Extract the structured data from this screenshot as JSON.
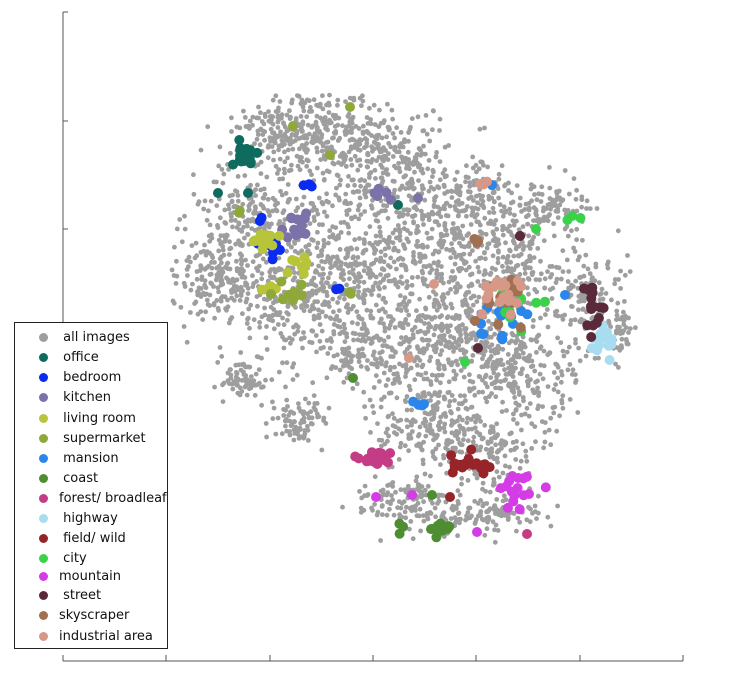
{
  "chart_data": {
    "type": "scatter",
    "title": "",
    "xlabel": "",
    "ylabel": "",
    "legend_position": "bottom-left",
    "grid": false,
    "x_ticks": [
      "",
      "",
      "",
      "",
      "",
      "",
      ""
    ],
    "y_ticks": [
      "",
      "",
      ""
    ],
    "background_cloud_color": "#9e9e9e",
    "series": [
      {
        "name": "all images",
        "color": "#9e9e9e"
      },
      {
        "name": "office",
        "color": "#0e6b5e"
      },
      {
        "name": "bedroom",
        "color": "#0a2bf0"
      },
      {
        "name": "kitchen",
        "color": "#7a72a8"
      },
      {
        "name": "living room",
        "color": "#b8c43a"
      },
      {
        "name": "supermarket",
        "color": "#8fa83a"
      },
      {
        "name": "mansion",
        "color": "#2a86ea"
      },
      {
        "name": "coast",
        "color": "#4e8e32"
      },
      {
        "name": "forest/ broadleaf",
        "color": "#c43c85"
      },
      {
        "name": "highway",
        "color": "#a8dcf0"
      },
      {
        "name": "field/ wild",
        "color": "#962428"
      },
      {
        "name": "city",
        "color": "#3ad24a"
      },
      {
        "name": "mountain",
        "color": "#d43ce6"
      },
      {
        "name": "street",
        "color": "#5a2a3a"
      },
      {
        "name": "skyscraper",
        "color": "#a07050"
      },
      {
        "name": "industrial area",
        "color": "#d89888"
      }
    ],
    "legend_labels": [
      " all images",
      " office",
      " bedroom",
      " kitchen",
      " living room",
      " supermarket",
      " mansion",
      " coast",
      "forest/ broadleaf",
      " highway",
      " field/ wild",
      " city",
      "mountain",
      " street",
      "skyscraper",
      "industrial area"
    ]
  }
}
